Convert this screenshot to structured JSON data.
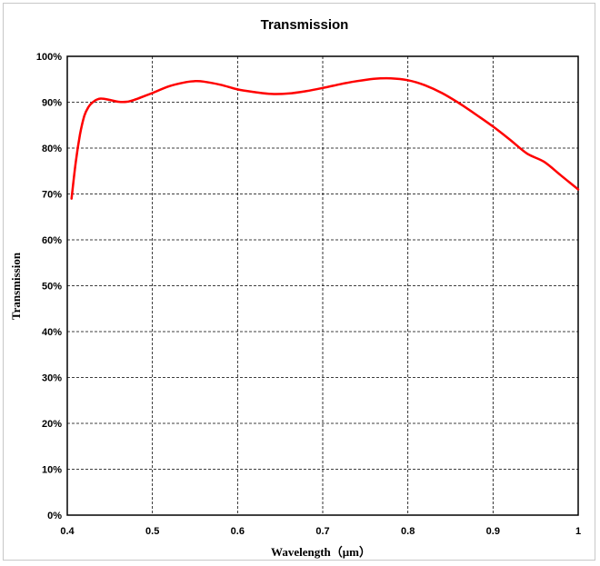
{
  "chart_data": {
    "type": "line",
    "title": "Transmission",
    "xlabel": "Wavelength（μm）",
    "ylabel": "Transmission",
    "xlim": [
      0.4,
      1.0
    ],
    "ylim": [
      0,
      100
    ],
    "x_ticks": [
      0.4,
      0.5,
      0.6,
      0.7,
      0.8,
      0.9,
      1.0
    ],
    "x_tick_labels": [
      "0.4",
      "0.5",
      "0.6",
      "0.7",
      "0.8",
      "0.9",
      "1"
    ],
    "y_ticks": [
      0,
      10,
      20,
      30,
      40,
      50,
      60,
      70,
      80,
      90,
      100
    ],
    "y_tick_labels": [
      "0%",
      "10%",
      "20%",
      "30%",
      "40%",
      "50%",
      "60%",
      "70%",
      "80%",
      "90%",
      "100%"
    ],
    "grid": true,
    "legend": "none",
    "series": [
      {
        "color": "#ff0000",
        "x": [
          0.405,
          0.41,
          0.415,
          0.42,
          0.425,
          0.43,
          0.435,
          0.44,
          0.45,
          0.46,
          0.47,
          0.48,
          0.49,
          0.5,
          0.52,
          0.54,
          0.55,
          0.56,
          0.58,
          0.6,
          0.62,
          0.64,
          0.66,
          0.68,
          0.7,
          0.72,
          0.74,
          0.76,
          0.78,
          0.8,
          0.82,
          0.84,
          0.86,
          0.88,
          0.9,
          0.92,
          0.94,
          0.96,
          0.98,
          1.0
        ],
        "y": [
          69,
          77,
          83,
          87,
          89,
          90,
          90.6,
          90.8,
          90.5,
          90.1,
          90.1,
          90.6,
          91.3,
          92,
          93.5,
          94.4,
          94.6,
          94.5,
          93.8,
          92.8,
          92.2,
          91.8,
          91.9,
          92.4,
          93.1,
          93.9,
          94.6,
          95.1,
          95.2,
          94.8,
          93.7,
          92.0,
          89.8,
          87.3,
          84.7,
          81.8,
          78.8,
          77.0,
          74.0,
          71.0
        ]
      }
    ]
  }
}
